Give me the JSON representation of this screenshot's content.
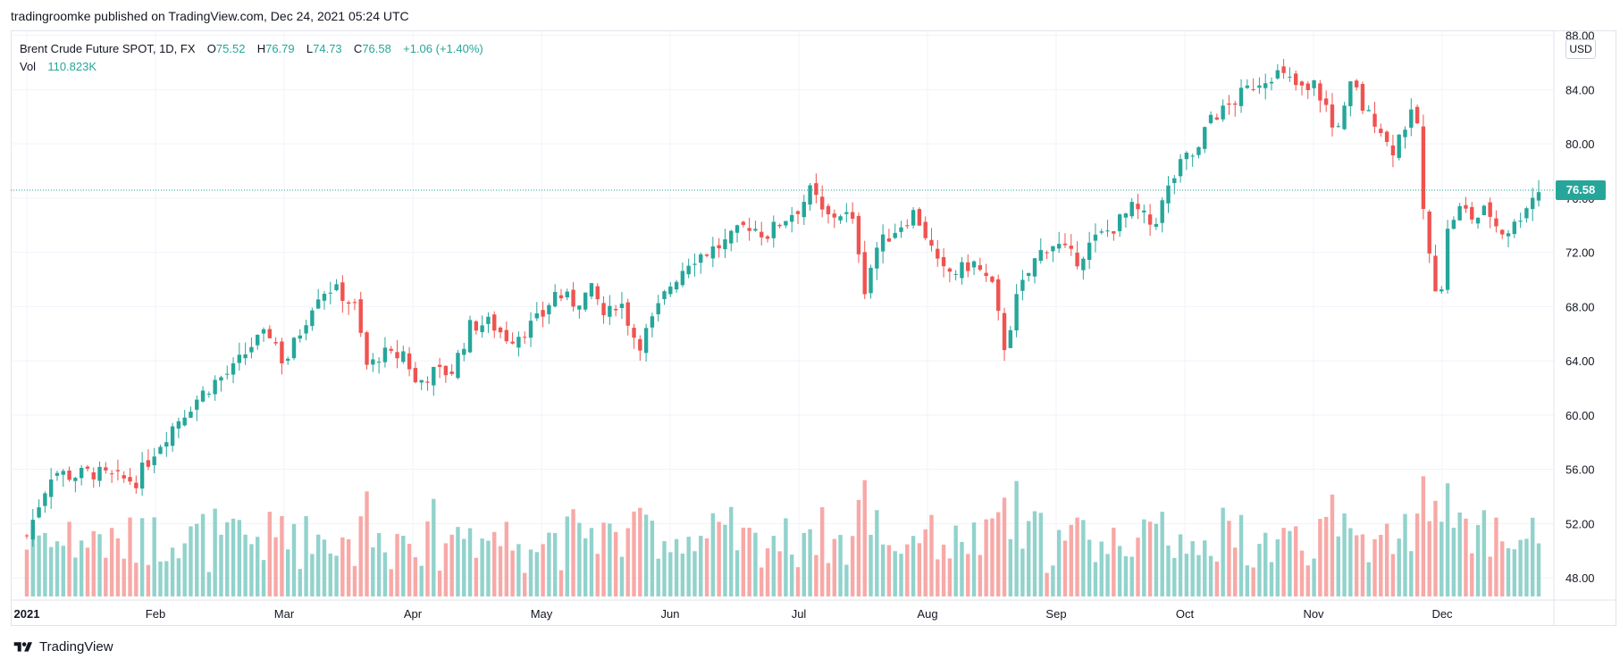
{
  "publisher_line": "tradingroomke published on TradingView.com, Dec 24, 2021 05:24 UTC",
  "legend": {
    "symbol": "Brent Crude Future SPOT, 1D, FX",
    "o_label": "O",
    "o_value": "75.52",
    "h_label": "H",
    "h_value": "76.79",
    "l_label": "L",
    "l_value": "74.73",
    "c_label": "C",
    "c_value": "76.58",
    "change": "+1.06 (+1.40%)",
    "vol_label": "Vol",
    "vol_value": "110.823K"
  },
  "currency_badge": "USD",
  "last_price_label": "76.58",
  "footer_brand": "TradingView",
  "icons": {
    "brand_logo": "tradingview-logo-icon"
  },
  "colors": {
    "up": "#26a69a",
    "down": "#ef5350",
    "up_volume": "#92d2cc",
    "down_volume": "#f7a9a7",
    "grid": "#f0f3fa",
    "axis_text": "#131722",
    "price_line": "#26a69a"
  },
  "chart_data": {
    "type": "candlestick",
    "title": "Brent Crude Future SPOT, 1D, FX",
    "y_axis": {
      "ticks": [
        "48.00",
        "52.00",
        "56.00",
        "60.00",
        "64.00",
        "68.00",
        "72.00",
        "76.00",
        "80.00",
        "84.00",
        "88.00"
      ],
      "range": [
        46.5,
        88.3
      ],
      "position": "right"
    },
    "x_axis": {
      "ticks": [
        "2021",
        "Feb",
        "Mar",
        "Apr",
        "May",
        "Jun",
        "Jul",
        "Aug",
        "Sep",
        "Oct",
        "Nov",
        "Dec"
      ],
      "tick_months": [
        0,
        1,
        2,
        3,
        4,
        5,
        6,
        7,
        8,
        9,
        10,
        11
      ],
      "range_months": [
        0,
        11.75
      ]
    },
    "last_price": 76.58,
    "grid": true,
    "closes_by_month": [
      {
        "month": 0.0,
        "close": 51.1
      },
      {
        "month": 0.1,
        "close": 53.6
      },
      {
        "month": 0.2,
        "close": 55.9
      },
      {
        "month": 0.35,
        "close": 55.5
      },
      {
        "month": 0.5,
        "close": 55.8
      },
      {
        "month": 0.7,
        "close": 55.3
      },
      {
        "month": 0.85,
        "close": 55.2
      },
      {
        "month": 1.0,
        "close": 57.5
      },
      {
        "month": 1.15,
        "close": 59.4
      },
      {
        "month": 1.3,
        "close": 61.0
      },
      {
        "month": 1.45,
        "close": 62.4
      },
      {
        "month": 1.6,
        "close": 63.3
      },
      {
        "month": 1.75,
        "close": 65.2
      },
      {
        "month": 1.9,
        "close": 66.1
      },
      {
        "month": 2.0,
        "close": 63.7
      },
      {
        "month": 2.15,
        "close": 66.7
      },
      {
        "month": 2.25,
        "close": 68.9
      },
      {
        "month": 2.35,
        "close": 69.4
      },
      {
        "month": 2.45,
        "close": 68.9
      },
      {
        "month": 2.55,
        "close": 67.9
      },
      {
        "month": 2.65,
        "close": 63.3
      },
      {
        "month": 2.75,
        "close": 64.6
      },
      {
        "month": 2.85,
        "close": 64.2
      },
      {
        "month": 2.95,
        "close": 64.8
      },
      {
        "month": 3.0,
        "close": 62.2
      },
      {
        "month": 3.15,
        "close": 63.1
      },
      {
        "month": 3.3,
        "close": 63.2
      },
      {
        "month": 3.45,
        "close": 66.6
      },
      {
        "month": 3.6,
        "close": 66.8
      },
      {
        "month": 3.75,
        "close": 65.6
      },
      {
        "month": 3.9,
        "close": 66.5
      },
      {
        "month": 4.0,
        "close": 67.2
      },
      {
        "month": 4.1,
        "close": 69.0
      },
      {
        "month": 4.25,
        "close": 68.3
      },
      {
        "month": 4.4,
        "close": 69.2
      },
      {
        "month": 4.5,
        "close": 67.0
      },
      {
        "month": 4.6,
        "close": 68.7
      },
      {
        "month": 4.75,
        "close": 65.1
      },
      {
        "month": 4.85,
        "close": 66.7
      },
      {
        "month": 4.95,
        "close": 68.7
      },
      {
        "month": 5.0,
        "close": 69.6
      },
      {
        "month": 5.15,
        "close": 71.5
      },
      {
        "month": 5.3,
        "close": 72.1
      },
      {
        "month": 5.45,
        "close": 72.8
      },
      {
        "month": 5.6,
        "close": 74.1
      },
      {
        "month": 5.75,
        "close": 73.3
      },
      {
        "month": 5.9,
        "close": 74.6
      },
      {
        "month": 6.0,
        "close": 75.3
      },
      {
        "month": 6.1,
        "close": 76.6
      },
      {
        "month": 6.2,
        "close": 74.5
      },
      {
        "month": 6.35,
        "close": 75.0
      },
      {
        "month": 6.45,
        "close": 73.6
      },
      {
        "month": 6.5,
        "close": 69.0
      },
      {
        "month": 6.6,
        "close": 72.3
      },
      {
        "month": 6.75,
        "close": 73.7
      },
      {
        "month": 6.9,
        "close": 75.0
      },
      {
        "month": 7.0,
        "close": 73.0
      },
      {
        "month": 7.1,
        "close": 70.5
      },
      {
        "month": 7.25,
        "close": 70.6
      },
      {
        "month": 7.35,
        "close": 71.3
      },
      {
        "month": 7.5,
        "close": 69.5
      },
      {
        "month": 7.6,
        "close": 65.0
      },
      {
        "month": 7.7,
        "close": 68.8
      },
      {
        "month": 7.85,
        "close": 71.7
      },
      {
        "month": 7.95,
        "close": 72.7
      },
      {
        "month": 8.0,
        "close": 72.6
      },
      {
        "month": 8.15,
        "close": 71.4
      },
      {
        "month": 8.3,
        "close": 72.9
      },
      {
        "month": 8.45,
        "close": 73.9
      },
      {
        "month": 8.6,
        "close": 75.3
      },
      {
        "month": 8.75,
        "close": 73.9
      },
      {
        "month": 8.9,
        "close": 77.3
      },
      {
        "month": 9.0,
        "close": 78.9
      },
      {
        "month": 9.1,
        "close": 79.3
      },
      {
        "month": 9.2,
        "close": 82.1
      },
      {
        "month": 9.3,
        "close": 82.4
      },
      {
        "month": 9.45,
        "close": 83.7
      },
      {
        "month": 9.55,
        "close": 84.5
      },
      {
        "month": 9.7,
        "close": 85.3
      },
      {
        "month": 9.8,
        "close": 84.7
      },
      {
        "month": 9.95,
        "close": 83.7
      },
      {
        "month": 10.0,
        "close": 84.4
      },
      {
        "month": 10.1,
        "close": 82.7
      },
      {
        "month": 10.15,
        "close": 81.0
      },
      {
        "month": 10.25,
        "close": 82.6
      },
      {
        "month": 10.3,
        "close": 84.7
      },
      {
        "month": 10.4,
        "close": 82.2
      },
      {
        "month": 10.5,
        "close": 81.7
      },
      {
        "month": 10.6,
        "close": 79.3
      },
      {
        "month": 10.7,
        "close": 81.3
      },
      {
        "month": 10.8,
        "close": 82.4
      },
      {
        "month": 10.87,
        "close": 72.7
      },
      {
        "month": 10.95,
        "close": 69.6
      },
      {
        "month": 11.0,
        "close": 69.7
      },
      {
        "month": 11.05,
        "close": 74.2
      },
      {
        "month": 11.15,
        "close": 75.3
      },
      {
        "month": 11.25,
        "close": 74.4
      },
      {
        "month": 11.35,
        "close": 75.2
      },
      {
        "month": 11.45,
        "close": 73.5
      },
      {
        "month": 11.55,
        "close": 73.8
      },
      {
        "month": 11.65,
        "close": 75.5
      },
      {
        "month": 11.75,
        "close": 76.6
      }
    ]
  }
}
